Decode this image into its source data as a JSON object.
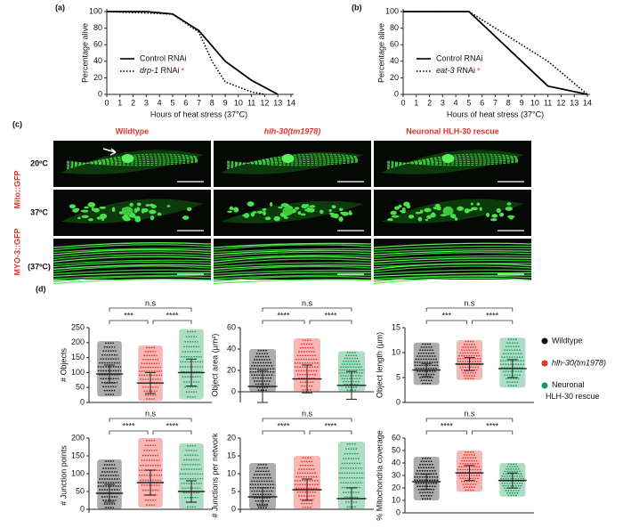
{
  "panels": {
    "a": "(a)",
    "b": "(b)",
    "c": "(c)",
    "d": "(d)"
  },
  "microscopy": {
    "columns": [
      "Wildtype",
      "hlh-30(tm1978)",
      "Neuronal HLH-30 rescue"
    ],
    "row_groups": [
      "Mito::GFP",
      "MYO-3::GFP"
    ],
    "rows": [
      "20ºC",
      "37ºC",
      "(37ºC)"
    ]
  },
  "legend": {
    "names": [
      "Wildtype",
      "hlh-30(tm1978)",
      "Neuronal HLH-30 rescue"
    ],
    "colors": [
      "#111111",
      "#e8302a",
      "#1a9a5a"
    ]
  },
  "chart_data": [
    {
      "type": "line",
      "ylabel": "Percentage alive",
      "xlabel": "Hours of heat stress (37°C)",
      "legend": "lower left",
      "annotation": "*",
      "xlim": [
        0,
        14
      ],
      "xticks": [
        0,
        1,
        2,
        3,
        4,
        5,
        6,
        7,
        8,
        9,
        10,
        11,
        12,
        13,
        14
      ],
      "ylim": [
        0,
        100
      ],
      "yticks": [
        0,
        20,
        40,
        60,
        80,
        100
      ],
      "series": [
        {
          "name": "Control RNAi",
          "color": "#000000",
          "style": "solid",
          "x": [
            0,
            3,
            5,
            7,
            9,
            11,
            13
          ],
          "values": [
            100,
            100,
            97,
            77,
            40,
            17,
            0
          ]
        },
        {
          "name": "drp-1 RNAi",
          "color": "#000000",
          "style": "dotted",
          "x": [
            0,
            5,
            7,
            8,
            9,
            11,
            12
          ],
          "values": [
            100,
            97,
            75,
            40,
            15,
            3,
            0
          ]
        }
      ]
    },
    {
      "type": "line",
      "ylabel": "Percentage alive",
      "xlabel": "Hours of heat stress (37°C)",
      "legend": "lower left",
      "annotation": "*",
      "xlim": [
        0,
        14
      ],
      "xticks": [
        0,
        1,
        2,
        3,
        4,
        5,
        6,
        7,
        8,
        9,
        10,
        11,
        12,
        13,
        14
      ],
      "ylim": [
        0,
        100
      ],
      "yticks": [
        0,
        20,
        40,
        60,
        80,
        100
      ],
      "series": [
        {
          "name": "Control RNAi",
          "color": "#000000",
          "style": "solid",
          "x": [
            0,
            5,
            7,
            9,
            11,
            14
          ],
          "values": [
            100,
            100,
            70,
            40,
            10,
            0
          ]
        },
        {
          "name": "eat-3 RNAi",
          "color": "#000000",
          "style": "dotted",
          "x": [
            0,
            5,
            7,
            9,
            11,
            14
          ],
          "values": [
            100,
            100,
            80,
            60,
            40,
            0
          ]
        }
      ]
    },
    {
      "type": "dot",
      "ylabel": "# Objects",
      "ylim": [
        0,
        250
      ],
      "yticks": [
        0,
        50,
        100,
        150,
        200,
        250
      ],
      "significance": [
        "n.s",
        "***",
        "****"
      ],
      "mean": [
        95,
        65,
        100
      ],
      "sd": [
        30,
        35,
        45
      ],
      "min": [
        20,
        5,
        10
      ],
      "max": [
        205,
        190,
        245
      ]
    },
    {
      "type": "dot",
      "ylabel": "Object area (µm²)",
      "ylim": [
        -10,
        60
      ],
      "yticks": [
        0,
        20,
        40,
        60
      ],
      "significance": [
        "n.s",
        "****",
        "****"
      ],
      "mean": [
        5,
        12,
        6
      ],
      "sd": [
        15,
        13,
        13
      ],
      "min": [
        0,
        0,
        0
      ],
      "max": [
        40,
        50,
        38
      ]
    },
    {
      "type": "dot",
      "ylabel": "Object length (µm)",
      "ylim": [
        0,
        15
      ],
      "yticks": [
        0,
        5,
        10,
        15
      ],
      "significance": [
        "n.s",
        "***",
        "****"
      ],
      "mean": [
        6.5,
        7.7,
        6.8
      ],
      "sd": [
        1.3,
        1.3,
        1.8
      ],
      "min": [
        3.5,
        4.5,
        3
      ],
      "max": [
        12,
        12.5,
        13
      ]
    },
    {
      "type": "dot",
      "ylabel": "# Junction points",
      "ylim": [
        -10,
        200
      ],
      "yticks": [
        0,
        50,
        100,
        150,
        200
      ],
      "significance": [
        "n.s",
        "****",
        "****"
      ],
      "mean": [
        45,
        75,
        50
      ],
      "sd": [
        25,
        35,
        30
      ],
      "min": [
        0,
        5,
        0
      ],
      "max": [
        140,
        200,
        185
      ]
    },
    {
      "type": "dot",
      "ylabel": "# Junctions per network",
      "ylim": [
        -1,
        20
      ],
      "yticks": [
        0,
        5,
        10,
        15,
        20
      ],
      "significance": [
        "n.s",
        "****",
        "****"
      ],
      "mean": [
        3.5,
        5.5,
        3
      ],
      "sd": [
        2.5,
        3,
        3
      ],
      "min": [
        0,
        0,
        0
      ],
      "max": [
        13,
        15,
        19
      ]
    },
    {
      "type": "dot",
      "ylabel": "% Mitochondria coverage",
      "ylim": [
        0,
        60
      ],
      "yticks": [
        0,
        10,
        20,
        30,
        40,
        50,
        60
      ],
      "significance": [
        "n.s",
        "****",
        "****"
      ],
      "mean": [
        25,
        32,
        26
      ],
      "sd": [
        6,
        6,
        6
      ],
      "min": [
        10,
        17,
        13
      ],
      "max": [
        45,
        50,
        40
      ]
    }
  ]
}
